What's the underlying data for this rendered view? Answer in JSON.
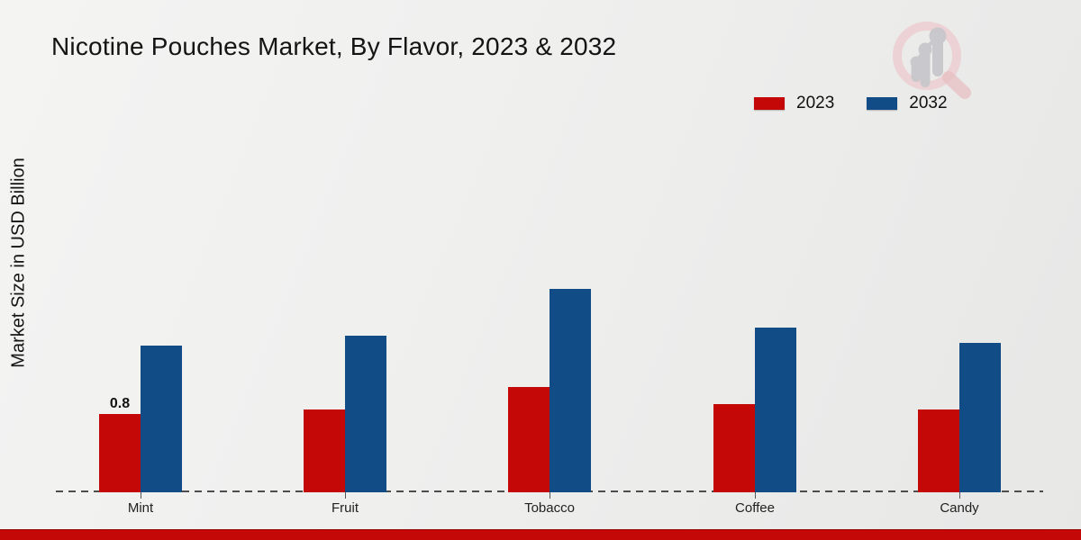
{
  "header": {
    "title": "Nicotine Pouches Market, By Flavor, 2023 & 2032"
  },
  "y_axis": {
    "label": "Market Size in USD Billion"
  },
  "legend": {
    "items": [
      {
        "label": "2023",
        "color": "#c40707"
      },
      {
        "label": "2032",
        "color": "#114c87"
      }
    ]
  },
  "icons": {
    "watermark": "magnifier-growth-chart-logo"
  },
  "footer": {
    "accent_color": "#c40707"
  },
  "chart_data": {
    "type": "bar",
    "title": "Nicotine Pouches Market, By Flavor, 2023 & 2032",
    "categories": [
      "Mint",
      "Fruit",
      "Tobacco",
      "Coffee",
      "Candy"
    ],
    "series": [
      {
        "name": "2023",
        "color": "#c40707",
        "values": [
          0.8,
          0.85,
          1.08,
          0.9,
          0.85
        ]
      },
      {
        "name": "2032",
        "color": "#114c87",
        "values": [
          1.5,
          1.6,
          2.08,
          1.68,
          1.53
        ]
      }
    ],
    "point_labels": [
      {
        "series": "2023",
        "category": "Mint",
        "text": "0.8"
      }
    ],
    "xlabel": "",
    "ylabel": "Market Size in USD Billion",
    "ylim": [
      0,
      2.5
    ],
    "grid": false,
    "y_axis_visible": false,
    "baseline_style": "dashed",
    "legend_position": "top-right"
  }
}
